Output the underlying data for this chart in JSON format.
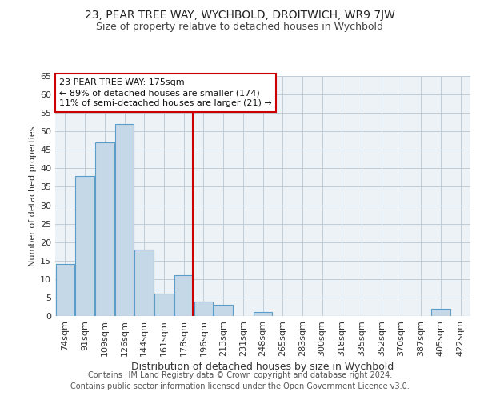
{
  "title": "23, PEAR TREE WAY, WYCHBOLD, DROITWICH, WR9 7JW",
  "subtitle": "Size of property relative to detached houses in Wychbold",
  "xlabel": "Distribution of detached houses by size in Wychbold",
  "ylabel": "Number of detached properties",
  "categories": [
    "74sqm",
    "91sqm",
    "109sqm",
    "126sqm",
    "144sqm",
    "161sqm",
    "178sqm",
    "196sqm",
    "213sqm",
    "231sqm",
    "248sqm",
    "265sqm",
    "283sqm",
    "300sqm",
    "318sqm",
    "335sqm",
    "352sqm",
    "370sqm",
    "387sqm",
    "405sqm",
    "422sqm"
  ],
  "values": [
    14,
    38,
    47,
    52,
    18,
    6,
    11,
    4,
    3,
    0,
    1,
    0,
    0,
    0,
    0,
    0,
    0,
    0,
    0,
    2,
    0
  ],
  "bar_color": "#c5d8e8",
  "bar_edge_color": "#5b9dc9",
  "highlight_line_index": 6,
  "highlight_color": "#cc0000",
  "ylim": [
    0,
    65
  ],
  "yticks": [
    0,
    5,
    10,
    15,
    20,
    25,
    30,
    35,
    40,
    45,
    50,
    55,
    60,
    65
  ],
  "annotation_line1": "23 PEAR TREE WAY: 175sqm",
  "annotation_line2": "← 89% of detached houses are smaller (174)",
  "annotation_line3": "11% of semi-detached houses are larger (21) →",
  "annotation_box_color": "#cc0000",
  "plot_bg_color": "#edf2f7",
  "fig_bg_color": "#ffffff",
  "footer_line1": "Contains HM Land Registry data © Crown copyright and database right 2024.",
  "footer_line2": "Contains public sector information licensed under the Open Government Licence v3.0.",
  "title_fontsize": 10,
  "subtitle_fontsize": 9,
  "xlabel_fontsize": 9,
  "ylabel_fontsize": 8,
  "tick_fontsize": 8,
  "annotation_fontsize": 8,
  "footer_fontsize": 7,
  "grid_color": "#c0cdd8"
}
